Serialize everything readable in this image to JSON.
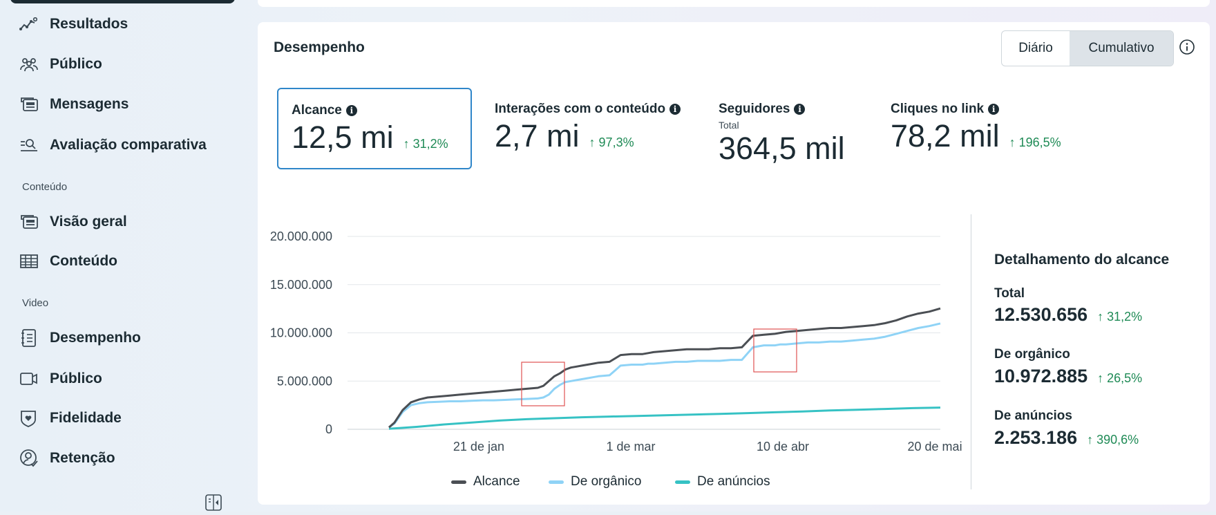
{
  "sidebar": {
    "items": [
      {
        "label": "Resultados",
        "icon": "trend-line-icon"
      },
      {
        "label": "Público",
        "icon": "people-group-icon"
      },
      {
        "label": "Mensagens",
        "icon": "messages-card-icon"
      },
      {
        "label": "Avaliação comparativa",
        "icon": "benchmark-search-icon"
      },
      {
        "label": "Visão geral",
        "icon": "overview-cards-icon"
      },
      {
        "label": "Conteúdo",
        "icon": "table-grid-icon"
      },
      {
        "label": "Desempenho",
        "icon": "notebook-list-icon"
      },
      {
        "label": "Público",
        "icon": "video-camera-icon"
      },
      {
        "label": "Fidelidade",
        "icon": "shield-heart-icon"
      },
      {
        "label": "Retenção",
        "icon": "user-check-icon"
      }
    ],
    "sections": {
      "content": "Conteúdo",
      "video": "Video"
    }
  },
  "card": {
    "title": "Desempenho",
    "toggle": {
      "daily": "Diário",
      "cumulative": "Cumulativo",
      "selected": "cumulative"
    }
  },
  "metrics": [
    {
      "label": "Alcance",
      "value": "12,5 mi",
      "change": "↑ 31,2%",
      "selected": true
    },
    {
      "label": "Interações com o conteúdo",
      "value": "2,7 mi",
      "change": "↑ 97,3%"
    },
    {
      "label": "Seguidores",
      "sublabel": "Total",
      "value": "364,5 mil"
    },
    {
      "label": "Cliques no link",
      "value": "78,2 mil",
      "change": "↑ 196,5%"
    }
  ],
  "chart_data": {
    "type": "line",
    "title": "",
    "xlabel": "",
    "ylabel": "",
    "ylim": [
      0,
      20000000
    ],
    "yticks": [
      "20.000.000",
      "15.000.000",
      "10.000.000",
      "5.000.000",
      "0"
    ],
    "x_tick_labels": [
      "21 de jan",
      "1 de mar",
      "10 de abr",
      "20 de mai"
    ],
    "x_tick_positions": [
      0.2115,
      0.4231,
      0.6346,
      0.8462
    ],
    "series": [
      {
        "name": "Alcance",
        "color": "#4b4f54",
        "x": [
          0,
          0.01,
          0.025,
          0.04,
          0.055,
          0.07,
          0.09,
          0.11,
          0.13,
          0.15,
          0.17,
          0.19,
          0.21,
          0.23,
          0.25,
          0.27,
          0.28,
          0.29,
          0.3,
          0.31,
          0.32,
          0.33,
          0.34,
          0.35,
          0.36,
          0.37,
          0.38,
          0.4,
          0.42,
          0.44,
          0.45,
          0.46,
          0.47,
          0.48,
          0.5,
          0.52,
          0.54,
          0.56,
          0.58,
          0.6,
          0.62,
          0.64,
          0.66,
          0.68,
          0.7,
          0.71,
          0.72,
          0.74,
          0.76,
          0.78,
          0.8,
          0.82,
          0.84,
          0.86,
          0.88,
          0.9,
          0.92,
          0.94,
          0.96,
          0.98,
          1.0
        ],
        "y": [
          200000,
          700000,
          2000000,
          2800000,
          3100000,
          3300000,
          3400000,
          3500000,
          3600000,
          3700000,
          3800000,
          3900000,
          4000000,
          4100000,
          4200000,
          4300000,
          4500000,
          5000000,
          5500000,
          5800000,
          6200000,
          6400000,
          6500000,
          6600000,
          6700000,
          6800000,
          6900000,
          7000000,
          7700000,
          7800000,
          7800000,
          7800000,
          7900000,
          8000000,
          8100000,
          8200000,
          8300000,
          8300000,
          8300000,
          8400000,
          8400000,
          8500000,
          9700000,
          9800000,
          9900000,
          10000000,
          10100000,
          10200000,
          10300000,
          10400000,
          10500000,
          10500000,
          10600000,
          10700000,
          10800000,
          11000000,
          11300000,
          11700000,
          12000000,
          12200000,
          12530656
        ]
      },
      {
        "name": "De orgânico",
        "color": "#8fd3f6",
        "x": [
          0,
          0.01,
          0.025,
          0.04,
          0.055,
          0.07,
          0.09,
          0.11,
          0.13,
          0.15,
          0.17,
          0.19,
          0.21,
          0.23,
          0.25,
          0.27,
          0.28,
          0.29,
          0.3,
          0.31,
          0.32,
          0.33,
          0.34,
          0.35,
          0.36,
          0.37,
          0.38,
          0.4,
          0.42,
          0.44,
          0.45,
          0.46,
          0.47,
          0.48,
          0.5,
          0.52,
          0.54,
          0.56,
          0.58,
          0.6,
          0.62,
          0.64,
          0.66,
          0.68,
          0.7,
          0.71,
          0.72,
          0.74,
          0.76,
          0.78,
          0.8,
          0.82,
          0.84,
          0.86,
          0.88,
          0.9,
          0.92,
          0.94,
          0.96,
          0.98,
          1.0
        ],
        "y": [
          200000,
          600000,
          1800000,
          2500000,
          2700000,
          2800000,
          2850000,
          2900000,
          2900000,
          2950000,
          3000000,
          3000000,
          3050000,
          3100000,
          3150000,
          3200000,
          3300000,
          3600000,
          4200000,
          4600000,
          4900000,
          5000000,
          5100000,
          5200000,
          5300000,
          5400000,
          5500000,
          5600000,
          6600000,
          6700000,
          6700000,
          6700000,
          6800000,
          6800000,
          6900000,
          7000000,
          7000000,
          7100000,
          7100000,
          7100000,
          7200000,
          7200000,
          8500000,
          8700000,
          8700000,
          8800000,
          8800000,
          8900000,
          9000000,
          9000000,
          9100000,
          9100000,
          9200000,
          9300000,
          9400000,
          9600000,
          9900000,
          10200000,
          10500000,
          10700000,
          10972885
        ]
      },
      {
        "name": "De anúncios",
        "color": "#36c2c4",
        "x": [
          0,
          0.05,
          0.1,
          0.15,
          0.2,
          0.25,
          0.3,
          0.35,
          0.4,
          0.45,
          0.5,
          0.55,
          0.6,
          0.65,
          0.7,
          0.75,
          0.8,
          0.85,
          0.9,
          0.95,
          1.0
        ],
        "y": [
          50000,
          250000,
          500000,
          700000,
          900000,
          1050000,
          1150000,
          1250000,
          1320000,
          1380000,
          1450000,
          1520000,
          1600000,
          1680000,
          1760000,
          1850000,
          1950000,
          2030000,
          2110000,
          2190000,
          2253186
        ]
      }
    ]
  },
  "breakdown": {
    "title": "Detalhamento do alcance",
    "rows": [
      {
        "label": "Total",
        "value": "12.530.656",
        "change": "↑ 31,2%"
      },
      {
        "label": "De orgânico",
        "value": "10.972.885",
        "change": "↑ 26,5%"
      },
      {
        "label": "De anúncios",
        "value": "2.253.186",
        "change": "↑ 390,6%"
      }
    ]
  },
  "annotations": {
    "highlight_color": "#e05252"
  }
}
